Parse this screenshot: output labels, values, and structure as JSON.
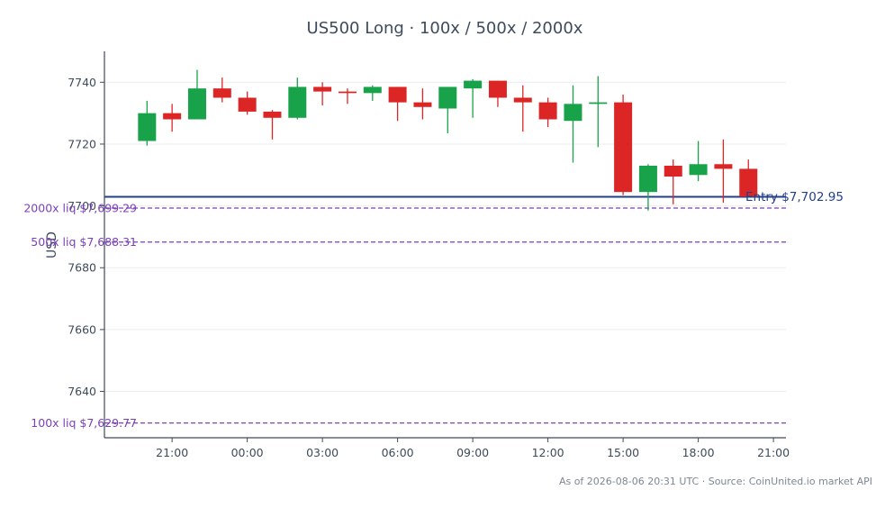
{
  "chart_data": {
    "type": "candlestick",
    "title": "US500 Long · 100x / 500x / 2000x",
    "ylabel": "USD",
    "xlabel": "",
    "ylim": [
      7625,
      7750
    ],
    "xlim": [
      -2.7,
      24.5
    ],
    "yticks": [
      7640,
      7660,
      7680,
      7700,
      7720,
      7740
    ],
    "ytick_labels": [
      "7640",
      "7660",
      "7680",
      "7700",
      "7720",
      "7740"
    ],
    "xticks": [
      0,
      3,
      6,
      9,
      12,
      15,
      18,
      21,
      24
    ],
    "xtick_labels": [
      "21:00",
      "00:00",
      "03:00",
      "06:00",
      "09:00",
      "12:00",
      "15:00",
      "18:00",
      "21:00"
    ],
    "grid": "horizontal",
    "up_color": "#18a34a",
    "down_color": "#dc2626",
    "candles": [
      {
        "x": -1,
        "open": 7721.0,
        "high": 7734.0,
        "low": 7719.5,
        "close": 7730.0
      },
      {
        "x": 0,
        "open": 7730.0,
        "high": 7733.0,
        "low": 7724.0,
        "close": 7728.0
      },
      {
        "x": 1,
        "open": 7728.0,
        "high": 7744.0,
        "low": 7728.0,
        "close": 7738.0
      },
      {
        "x": 2,
        "open": 7738.0,
        "high": 7741.5,
        "low": 7733.5,
        "close": 7735.0
      },
      {
        "x": 3,
        "open": 7735.0,
        "high": 7737.0,
        "low": 7729.5,
        "close": 7730.5
      },
      {
        "x": 4,
        "open": 7730.5,
        "high": 7731.0,
        "low": 7721.5,
        "close": 7728.5
      },
      {
        "x": 5,
        "open": 7728.5,
        "high": 7741.5,
        "low": 7728.0,
        "close": 7738.5
      },
      {
        "x": 6,
        "open": 7738.5,
        "high": 7740.0,
        "low": 7732.5,
        "close": 7737.0
      },
      {
        "x": 7,
        "open": 7737.0,
        "high": 7738.0,
        "low": 7733.0,
        "close": 7736.5
      },
      {
        "x": 8,
        "open": 7736.5,
        "high": 7739.0,
        "low": 7734.0,
        "close": 7738.5
      },
      {
        "x": 9,
        "open": 7738.5,
        "high": 7738.5,
        "low": 7727.5,
        "close": 7733.5
      },
      {
        "x": 10,
        "open": 7733.5,
        "high": 7738.0,
        "low": 7728.0,
        "close": 7732.0
      },
      {
        "x": 11,
        "open": 7731.5,
        "high": 7738.5,
        "low": 7723.5,
        "close": 7738.5
      },
      {
        "x": 12,
        "open": 7738.0,
        "high": 7741.0,
        "low": 7728.5,
        "close": 7740.5
      },
      {
        "x": 13,
        "open": 7740.5,
        "high": 7740.5,
        "low": 7732.0,
        "close": 7735.0
      },
      {
        "x": 14,
        "open": 7735.0,
        "high": 7739.0,
        "low": 7724.0,
        "close": 7733.5
      },
      {
        "x": 15,
        "open": 7733.5,
        "high": 7735.0,
        "low": 7725.5,
        "close": 7728.0
      },
      {
        "x": 16,
        "open": 7727.5,
        "high": 7739.0,
        "low": 7714.0,
        "close": 7733.0
      },
      {
        "x": 17,
        "open": 7733.0,
        "high": 7742.0,
        "low": 7719.0,
        "close": 7733.5
      },
      {
        "x": 18,
        "open": 7733.5,
        "high": 7736.0,
        "low": 7703.5,
        "close": 7704.5
      },
      {
        "x": 19,
        "open": 7704.5,
        "high": 7713.5,
        "low": 7698.5,
        "close": 7713.0
      },
      {
        "x": 20,
        "open": 7713.0,
        "high": 7715.0,
        "low": 7700.5,
        "close": 7709.5
      },
      {
        "x": 21,
        "open": 7710.0,
        "high": 7721.0,
        "low": 7708.0,
        "close": 7713.5
      },
      {
        "x": 22,
        "open": 7713.5,
        "high": 7721.5,
        "low": 7701.0,
        "close": 7712.0
      },
      {
        "x": 23,
        "open": 7712.0,
        "high": 7715.0,
        "low": 7703.0,
        "close": 7703.0
      }
    ],
    "entry": {
      "value": 7702.95,
      "label": "Entry $7,702.95",
      "color": "#22408a"
    },
    "liquidation_lines": [
      {
        "value": 7699.29,
        "label": "2000x liq $7,699.29",
        "color": "#7b3fbf"
      },
      {
        "value": 7688.31,
        "label": "500x liq $7,688.31",
        "color": "#7b3fbf"
      },
      {
        "value": 7629.77,
        "label": "100x liq $7,629.77",
        "color": "#7b3fbf"
      }
    ],
    "footer": "As of 2026-08-06 20:31 UTC · Source: CoinUnited.io market API"
  }
}
